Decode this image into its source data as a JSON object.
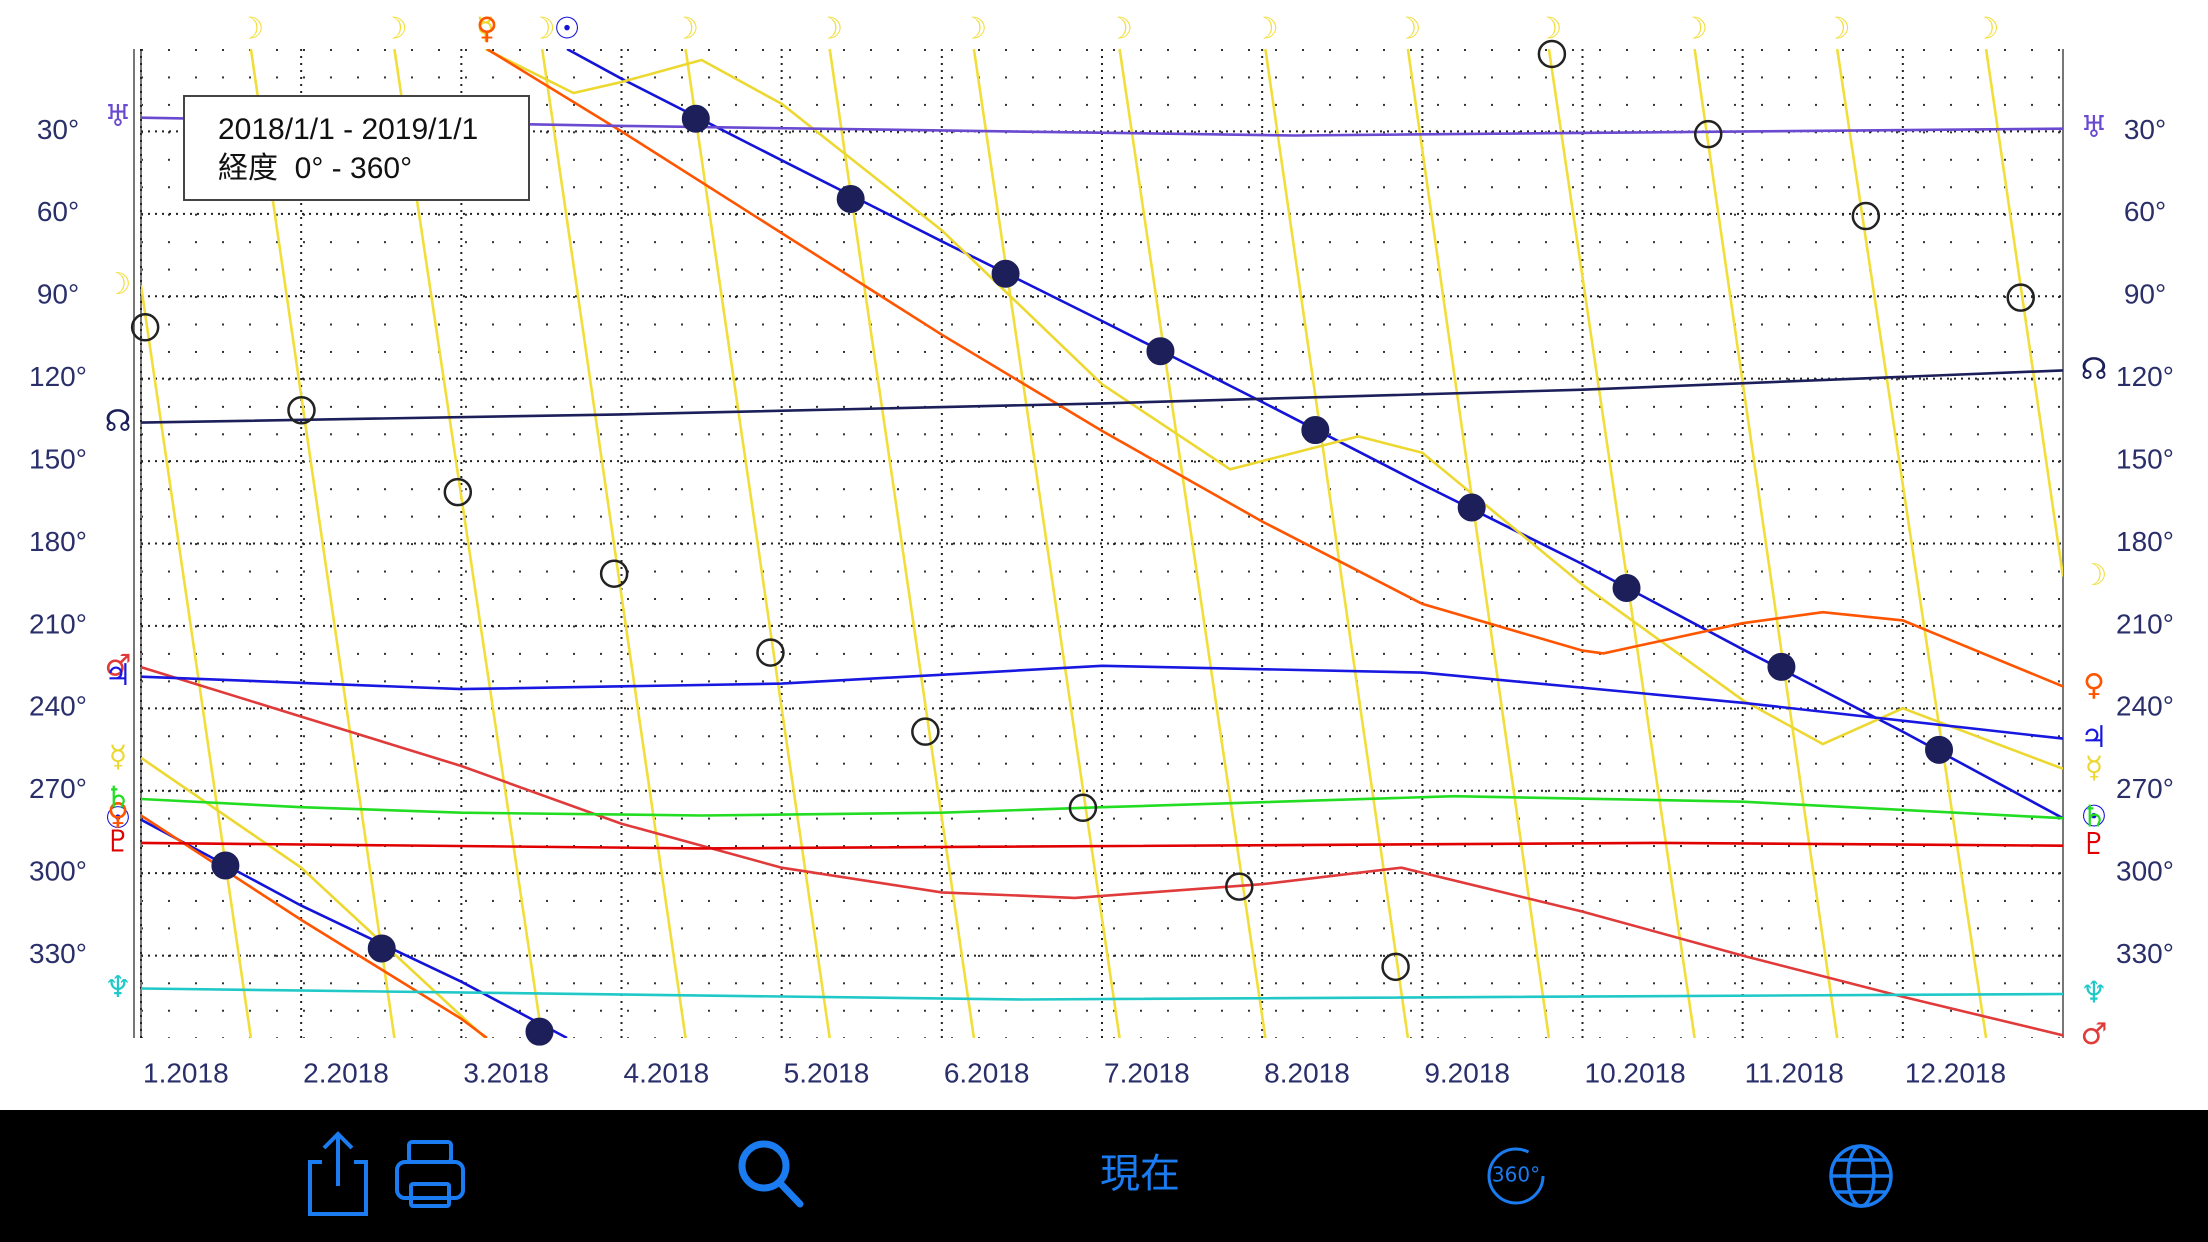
{
  "chart_data": {
    "type": "line",
    "annotations": [
      "2018/1/1 - 2019/1/1",
      "経度  0° - 360°"
    ],
    "xlim": [
      0,
      12
    ],
    "xticks": [
      {
        "value": 0,
        "label": "1.2018"
      },
      {
        "value": 1,
        "label": "2.2018"
      },
      {
        "value": 2,
        "label": "3.2018"
      },
      {
        "value": 3,
        "label": "4.2018"
      },
      {
        "value": 4,
        "label": "5.2018"
      },
      {
        "value": 5,
        "label": "6.2018"
      },
      {
        "value": 6,
        "label": "7.2018"
      },
      {
        "value": 7,
        "label": "8.2018"
      },
      {
        "value": 8,
        "label": "9.2018"
      },
      {
        "value": 9,
        "label": "10.2018"
      },
      {
        "value": 10,
        "label": "11.2018"
      },
      {
        "value": 11,
        "label": "12.2018"
      }
    ],
    "ylim": [
      0,
      360
    ],
    "y_inverted": true,
    "yticks": [
      {
        "value": 30,
        "label": "30°"
      },
      {
        "value": 60,
        "label": "60°"
      },
      {
        "value": 90,
        "label": "90°"
      },
      {
        "value": 120,
        "label": "120°"
      },
      {
        "value": 150,
        "label": "150°"
      },
      {
        "value": 180,
        "label": "180°"
      },
      {
        "value": 210,
        "label": "210°"
      },
      {
        "value": 240,
        "label": "240°"
      },
      {
        "value": 270,
        "label": "270°"
      },
      {
        "value": 300,
        "label": "300°"
      },
      {
        "value": 330,
        "label": "330°"
      }
    ],
    "grid": true,
    "series": [
      {
        "glyph": "☽",
        "color": "#f2de3a",
        "x": [
          0,
          0.686,
          0.686,
          0.686,
          1.582,
          1.582,
          1.582,
          2.505,
          2.505,
          2.505,
          3.4,
          3.4,
          3.4,
          4.3,
          4.3,
          4.3,
          5.2,
          5.2,
          5.2,
          6.11,
          6.11,
          6.11,
          7.02,
          7.02,
          7.02,
          7.91,
          7.91,
          7.91,
          8.79,
          8.79,
          8.79,
          9.7,
          9.7,
          9.7,
          10.59,
          10.59,
          10.59,
          11.52,
          11.52,
          11.52,
          12
        ],
        "values": [
          86,
          360,
          null,
          0,
          360,
          null,
          0,
          360,
          null,
          0,
          360,
          null,
          0,
          360,
          null,
          0,
          360,
          null,
          0,
          360,
          null,
          0,
          360,
          null,
          0,
          360,
          null,
          0,
          360,
          null,
          0,
          360,
          null,
          0,
          360,
          null,
          0,
          360,
          null,
          0,
          192
        ]
      },
      {
        "glyph": "☉",
        "color": "#1414d8",
        "x": [
          0,
          1,
          2,
          2.66,
          2.66,
          2.66,
          3,
          4,
          5,
          6,
          7,
          8,
          9,
          10,
          11,
          12
        ],
        "values": [
          280.5,
          311.8,
          339.5,
          360,
          null,
          0,
          10.8,
          40.5,
          70,
          99,
          128.5,
          158.5,
          187.5,
          218.5,
          248.5,
          280
        ]
      },
      {
        "glyph": "☿",
        "color": "#ecd830",
        "x": [
          0,
          1,
          2,
          2.15,
          2.15,
          2.15,
          2.7,
          3,
          3.5,
          4,
          5,
          6,
          6.8,
          7.6,
          8,
          9,
          10,
          10.5,
          11,
          12
        ],
        "values": [
          258,
          298,
          352,
          360,
          null,
          0,
          16,
          12,
          4,
          20,
          66,
          122,
          153,
          141,
          147,
          195,
          237,
          253,
          240,
          262
        ]
      },
      {
        "glyph": "♀",
        "color": "#ff5500",
        "x": [
          0,
          1,
          2,
          2.16,
          2.16,
          2.16,
          3,
          4,
          5,
          6,
          7,
          8,
          9,
          9.13,
          10,
          10.5,
          11,
          12
        ],
        "values": [
          279,
          317,
          353,
          360,
          null,
          0,
          30,
          67,
          104,
          139,
          172,
          202,
          219,
          220,
          209,
          205,
          208,
          232
        ]
      },
      {
        "glyph": "♂",
        "color": "#e03a3a",
        "x": [
          0,
          1,
          2,
          3,
          4,
          5,
          5.83,
          7,
          7.87,
          9,
          10,
          11,
          12
        ],
        "values": [
          225,
          243,
          261,
          282,
          298,
          307,
          309,
          304,
          298,
          314,
          330,
          345,
          359
        ]
      },
      {
        "glyph": "♃",
        "color": "#1818e0",
        "x": [
          0,
          2,
          4,
          6,
          8,
          10,
          12
        ],
        "values": [
          228.5,
          233,
          231,
          224.5,
          227,
          238,
          251
        ]
      },
      {
        "glyph": "♄",
        "color": "#22dd22",
        "x": [
          0,
          1,
          2,
          3.5,
          5,
          6,
          8.2,
          10,
          12
        ],
        "values": [
          273,
          276,
          278,
          279,
          278,
          276,
          272,
          274,
          280
        ]
      },
      {
        "glyph": "♅",
        "color": "#6a4ad0",
        "x": [
          0,
          3,
          7.2,
          12
        ],
        "values": [
          25,
          28,
          31.5,
          29
        ]
      },
      {
        "glyph": "♆",
        "color": "#20c8c8",
        "x": [
          0,
          5.5,
          12
        ],
        "values": [
          342,
          346,
          344
        ]
      },
      {
        "glyph": "♇",
        "color": "#e00000",
        "x": [
          0,
          3.5,
          9.5,
          12
        ],
        "values": [
          289,
          291,
          289,
          290
        ]
      },
      {
        "glyph": "☊",
        "color": "#1c1f5a",
        "x": [
          0,
          3,
          6,
          9,
          12
        ],
        "values": [
          136,
          133,
          129,
          124,
          117
        ]
      },
      {
        "marker": "filled",
        "color": "#1c1f5a",
        "x": [
          0.527,
          1.503,
          2.488,
          3.464,
          4.431,
          5.398,
          6.365,
          7.332,
          8.308,
          9.275,
          10.242,
          11.226
        ],
        "values": [
          297.2,
          327.4,
          357.7,
          25.4,
          54.6,
          81.8,
          110.0,
          138.7,
          166.9,
          196.2,
          224.9,
          255.1
        ]
      },
      {
        "marker": "hollow",
        "color": "#222222",
        "x": [
          0.026,
          1.002,
          1.978,
          2.954,
          3.93,
          4.897,
          5.881,
          6.857,
          7.833,
          8.809,
          9.785,
          10.769,
          11.736
        ],
        "values": [
          101.3,
          131.5,
          161.3,
          191.0,
          219.7,
          248.5,
          276.2,
          304.9,
          334.1,
          1.8,
          31.0,
          60.8,
          90.5
        ]
      }
    ]
  },
  "toolbar": {
    "now_label": "現在",
    "icon_360": "360°"
  }
}
